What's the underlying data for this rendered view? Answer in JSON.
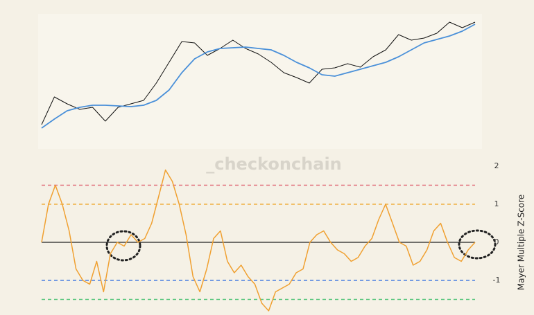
{
  "chart_data": [
    {
      "type": "line",
      "watermark": "_checkonchain",
      "ylim": [
        0,
        160
      ],
      "series": [
        {
          "color": "#111111",
          "values": [
            10,
            50,
            40,
            32,
            35,
            15,
            35,
            40,
            45,
            70,
            100,
            130,
            128,
            110,
            120,
            132,
            120,
            112,
            100,
            85,
            78,
            70,
            90,
            92,
            98,
            93,
            108,
            118,
            140,
            132,
            135,
            142,
            158,
            150,
            158
          ]
        },
        {
          "color": "#4a90d9",
          "values": [
            5,
            18,
            30,
            35,
            38,
            38,
            37,
            36,
            38,
            45,
            60,
            85,
            105,
            115,
            120,
            121,
            122,
            120,
            118,
            110,
            100,
            92,
            82,
            80,
            85,
            90,
            95,
            100,
            108,
            118,
            128,
            133,
            138,
            145,
            155
          ]
        }
      ]
    },
    {
      "type": "line",
      "ylabel": "Mayer Multiple Z-Score",
      "ylim": [
        -1.9,
        2.2
      ],
      "yticks": [
        -1,
        0,
        1,
        2
      ],
      "color": "#f0a030",
      "values": [
        0,
        1.0,
        1.5,
        1.0,
        0.3,
        -0.7,
        -1.0,
        -1.1,
        -0.5,
        -1.3,
        -0.3,
        0.0,
        -0.1,
        0.2,
        0.0,
        0.1,
        0.5,
        1.2,
        1.9,
        1.6,
        1.0,
        0.2,
        -0.9,
        -1.3,
        -0.7,
        0.1,
        0.3,
        -0.5,
        -0.8,
        -0.6,
        -0.9,
        -1.1,
        -1.6,
        -1.8,
        -1.3,
        -1.2,
        -1.1,
        -0.8,
        -0.7,
        0.0,
        0.2,
        0.3,
        0.0,
        -0.2,
        -0.3,
        -0.5,
        -0.4,
        -0.1,
        0.1,
        0.6,
        1.0,
        0.5,
        0.0,
        -0.1,
        -0.6,
        -0.5,
        -0.2,
        0.3,
        0.5,
        0.0,
        -0.4,
        -0.5,
        -0.2,
        0.0
      ],
      "reference_lines": [
        {
          "value": 1.5,
          "color": "#e06a78"
        },
        {
          "value": 1,
          "color": "#f0b040"
        },
        {
          "value": -1,
          "color": "#4a7fe0"
        },
        {
          "value": -1.5,
          "color": "#55c47a"
        }
      ]
    }
  ]
}
